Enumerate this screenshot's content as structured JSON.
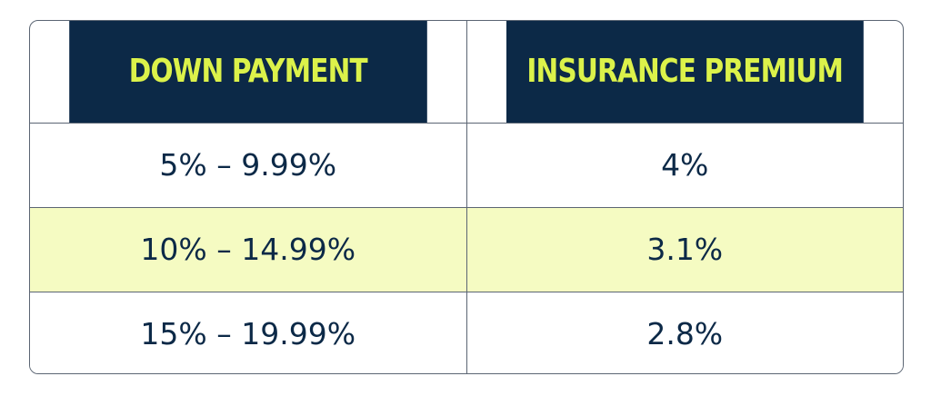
{
  "table": {
    "headers": [
      "DOWN PAYMENT",
      "INSURANCE PREMIUM"
    ],
    "rows": [
      {
        "down_payment": "5% – 9.99%",
        "premium": "4%"
      },
      {
        "down_payment": "10% – 14.99%",
        "premium": "3.1%"
      },
      {
        "down_payment": "15% – 19.99%",
        "premium": "2.8%"
      }
    ]
  },
  "colors": {
    "header_bg": "#0c2947",
    "header_text": "#dcf24a",
    "body_text": "#0c2947",
    "row_highlight": "#f5fbc2",
    "border": "#5b6573"
  }
}
